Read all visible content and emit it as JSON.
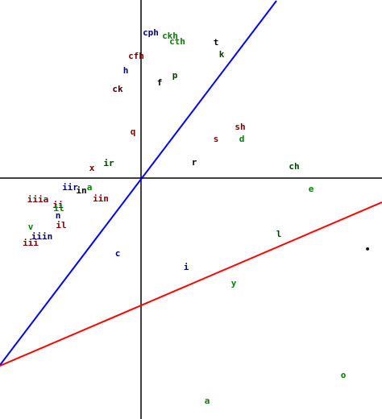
{
  "chart_data": {
    "type": "scatter",
    "xlim": [
      -175,
      299
    ],
    "ylim": [
      -299,
      221
    ],
    "axes_color": "#000000",
    "points": [
      {
        "label": "cph",
        "x": 12,
        "y": 180,
        "color": "#000080"
      },
      {
        "label": "ckh",
        "x": 36,
        "y": 176,
        "color": "#008000"
      },
      {
        "label": "cth",
        "x": 45,
        "y": 169,
        "color": "#008000"
      },
      {
        "label": "t",
        "x": 93,
        "y": 168,
        "color": "#000000"
      },
      {
        "label": "k",
        "x": 100,
        "y": 153,
        "color": "#004000"
      },
      {
        "label": "cfh",
        "x": -6,
        "y": 151,
        "color": "#800000"
      },
      {
        "label": "h",
        "x": -19,
        "y": 133,
        "color": "#000080"
      },
      {
        "label": "f",
        "x": 23,
        "y": 118,
        "color": "#000000"
      },
      {
        "label": "p",
        "x": 42,
        "y": 127,
        "color": "#004000"
      },
      {
        "label": "ck",
        "x": -29,
        "y": 110,
        "color": "#400000"
      },
      {
        "label": "q",
        "x": -10,
        "y": 57,
        "color": "#800000"
      },
      {
        "label": "sh",
        "x": 123,
        "y": 63,
        "color": "#800000"
      },
      {
        "label": "s",
        "x": 93,
        "y": 48,
        "color": "#800000"
      },
      {
        "label": "d",
        "x": 125,
        "y": 48,
        "color": "#008000"
      },
      {
        "label": "r",
        "x": 66,
        "y": 19,
        "color": "#000000"
      },
      {
        "label": "ir",
        "x": -40,
        "y": 18,
        "color": "#004000"
      },
      {
        "label": "x",
        "x": -61,
        "y": 12,
        "color": "#800000"
      },
      {
        "label": "ch",
        "x": 190,
        "y": 14,
        "color": "#004000"
      },
      {
        "label": "e",
        "x": 211,
        "y": -14,
        "color": "#008000"
      },
      {
        "label": "iir",
        "x": -88,
        "y": -12,
        "color": "#000080"
      },
      {
        "label": "a",
        "x": -64,
        "y": -12,
        "color": "#008000"
      },
      {
        "label": "in",
        "x": -74,
        "y": -16,
        "color": "#000000"
      },
      {
        "label": "iin",
        "x": -50,
        "y": -26,
        "color": "#800000"
      },
      {
        "label": "iiia",
        "x": -128,
        "y": -27,
        "color": "#800000"
      },
      {
        "label": "ii",
        "x": -103,
        "y": -34,
        "color": "#800000"
      },
      {
        "label": "il",
        "x": -102,
        "y": -38,
        "color": "#008000"
      },
      {
        "label": "n",
        "x": -103,
        "y": -47,
        "color": "#000080"
      },
      {
        "label": "il",
        "x": -99,
        "y": -59,
        "color": "#800000"
      },
      {
        "label": "v",
        "x": -137,
        "y": -61,
        "color": "#008000"
      },
      {
        "label": "iiin",
        "x": -123,
        "y": -73,
        "color": "#000080"
      },
      {
        "label": "iii",
        "x": -137,
        "y": -81,
        "color": "#800000"
      },
      {
        "label": "c",
        "x": -29,
        "y": -94,
        "color": "#000080"
      },
      {
        "label": "l",
        "x": 171,
        "y": -70,
        "color": "#004000"
      },
      {
        "label": "•",
        "x": 281,
        "y": -89,
        "color": "#000000"
      },
      {
        "label": "i",
        "x": 56,
        "y": -111,
        "color": "#000080"
      },
      {
        "label": "y",
        "x": 115,
        "y": -131,
        "color": "#008000"
      },
      {
        "label": "o",
        "x": 251,
        "y": -245,
        "color": "#008000"
      },
      {
        "label": "a",
        "x": 82,
        "y": -277,
        "color": "#008000"
      }
    ],
    "lines": [
      {
        "color": "#0000ff",
        "x": [
          -175,
          168
        ],
        "y": [
          -232,
          220
        ]
      },
      {
        "color": "#ff0000",
        "x": [
          -175,
          299
        ],
        "y": [
          -233,
          -30
        ]
      }
    ]
  }
}
